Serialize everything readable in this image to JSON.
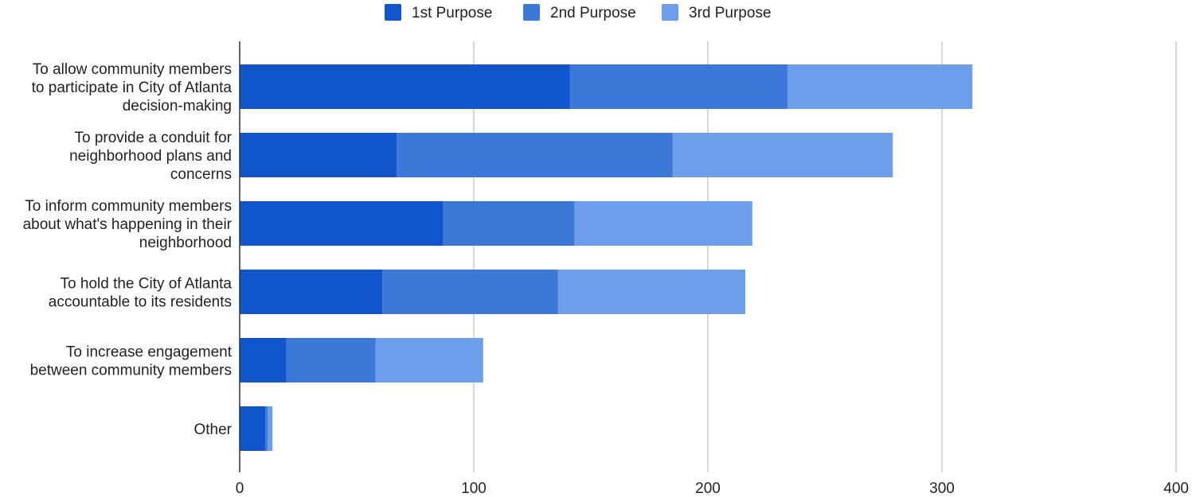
{
  "chart_data": {
    "type": "bar",
    "orientation": "horizontal",
    "stacked": true,
    "categories": [
      [
        "To allow community members",
        "to participate in City of Atlanta",
        "decision-making"
      ],
      [
        "To provide a conduit for",
        "neighborhood plans and",
        "concerns"
      ],
      [
        "To inform community members",
        "about what's happening in their",
        "neighborhood"
      ],
      [
        "To hold the City of Atlanta",
        "accountable to its residents"
      ],
      [
        "To increase engagement",
        "between community members"
      ],
      [
        "Other"
      ]
    ],
    "series": [
      {
        "name": "1st Purpose",
        "color": "#1155cc",
        "values": [
          141,
          67,
          87,
          61,
          20,
          11
        ]
      },
      {
        "name": "2nd Purpose",
        "color": "#3c78d8",
        "values": [
          93,
          118,
          56,
          75,
          38,
          1
        ]
      },
      {
        "name": "3rd Purpose",
        "color": "#6d9eeb",
        "values": [
          79,
          94,
          76,
          80,
          46,
          2
        ]
      }
    ],
    "xlim": [
      0,
      400
    ],
    "xticks": [
      0,
      100,
      200,
      300,
      400
    ],
    "grid": true,
    "legend": "top-center"
  }
}
